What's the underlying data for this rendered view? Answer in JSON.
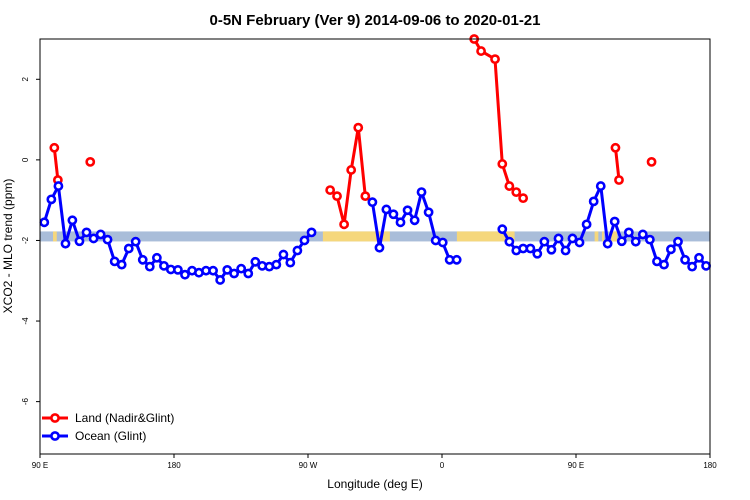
{
  "chart_data": {
    "type": "line",
    "title": "0-5N February (Ver 9)   2014-09-06 to 2020-01-21",
    "xlabel": "Longitude (deg E)",
    "ylabel": "XCO2 - MLO trend (ppm)",
    "xlim": [
      90,
      450
    ],
    "ylim": [
      -7.3,
      3.0
    ],
    "x_ticks": [
      {
        "value": 90,
        "label": "90 E"
      },
      {
        "value": 162,
        "label": "180"
      },
      {
        "value": 234,
        "label": "90 W"
      },
      {
        "value": 306,
        "label": "0"
      },
      {
        "value": 378,
        "label": "90 E"
      },
      {
        "value": 450,
        "label": "180"
      }
    ],
    "y_ticks": [
      {
        "value": 2,
        "label": "2"
      },
      {
        "value": 0,
        "label": "0"
      },
      {
        "value": -2,
        "label": "-2"
      },
      {
        "value": -4,
        "label": "-4"
      },
      {
        "value": -6,
        "label": "-6"
      }
    ],
    "band": {
      "y": -1.9,
      "color_ocean": "#a9bdd9",
      "color_land": "#f5d77c",
      "land_ranges": [
        [
          97,
          99
        ],
        [
          242,
          278
        ],
        [
          314,
          345
        ],
        [
          388,
          390
        ],
        [
          392,
          393
        ],
        [
          397,
          400
        ]
      ]
    },
    "series": [
      {
        "name": "Land (Nadir&Glint)",
        "color": "#ff0000",
        "segments": [
          [
            [
              97.7,
              0.3
            ],
            [
              99.6,
              -0.5
            ]
          ],
          [
            [
              117.0,
              -0.05
            ]
          ],
          [
            [
              245.9,
              -0.75
            ],
            [
              249.6,
              -0.9
            ],
            [
              253.4,
              -1.6
            ],
            [
              257.2,
              -0.25
            ],
            [
              261.0,
              0.8
            ],
            [
              264.8,
              -0.9
            ]
          ],
          [
            [
              323.3,
              3.0
            ],
            [
              327.0,
              2.7
            ],
            [
              334.5,
              2.5
            ],
            [
              338.4,
              -0.1
            ],
            [
              342.2,
              -0.65
            ],
            [
              345.9,
              -0.8
            ],
            [
              349.6,
              -0.95
            ]
          ],
          [
            [
              399.2,
              0.3
            ],
            [
              401.1,
              -0.5
            ]
          ],
          [
            [
              418.6,
              -0.05
            ]
          ]
        ]
      },
      {
        "name": "Ocean (Glint)",
        "color": "#0000ff",
        "segments": [
          [
            [
              92.3,
              -1.55
            ],
            [
              96.1,
              -0.98
            ],
            [
              99.9,
              -0.65
            ],
            [
              103.7,
              -2.08
            ],
            [
              107.4,
              -1.5
            ],
            [
              111.2,
              -2.02
            ],
            [
              115.0,
              -1.8
            ],
            [
              118.8,
              -1.95
            ],
            [
              122.6,
              -1.85
            ],
            [
              126.3,
              -1.98
            ],
            [
              130.1,
              -2.52
            ],
            [
              133.9,
              -2.6
            ],
            [
              137.7,
              -2.2
            ],
            [
              141.4,
              -2.03
            ],
            [
              145.2,
              -2.48
            ],
            [
              149.0,
              -2.65
            ],
            [
              152.8,
              -2.43
            ],
            [
              156.6,
              -2.63
            ],
            [
              160.3,
              -2.72
            ],
            [
              164.1,
              -2.73
            ],
            [
              167.9,
              -2.85
            ],
            [
              171.7,
              -2.75
            ],
            [
              175.4,
              -2.8
            ],
            [
              179.2,
              -2.75
            ],
            [
              183.0,
              -2.75
            ],
            [
              186.8,
              -2.98
            ],
            [
              190.6,
              -2.73
            ],
            [
              194.3,
              -2.82
            ],
            [
              198.1,
              -2.7
            ],
            [
              201.9,
              -2.82
            ],
            [
              205.7,
              -2.53
            ],
            [
              209.4,
              -2.63
            ],
            [
              213.2,
              -2.65
            ],
            [
              217.0,
              -2.6
            ],
            [
              220.8,
              -2.35
            ],
            [
              224.5,
              -2.55
            ],
            [
              228.3,
              -2.25
            ],
            [
              232.1,
              -2.0
            ],
            [
              235.9,
              -1.8
            ]
          ],
          [
            [
              268.6,
              -1.05
            ],
            [
              272.4,
              -2.18
            ],
            [
              276.1,
              -1.23
            ],
            [
              279.9,
              -1.35
            ],
            [
              283.7,
              -1.55
            ],
            [
              287.5,
              -1.25
            ],
            [
              291.3,
              -1.5
            ],
            [
              295.0,
              -0.8
            ],
            [
              298.8,
              -1.3
            ],
            [
              302.6,
              -2.0
            ],
            [
              306.4,
              -2.05
            ],
            [
              310.1,
              -2.48
            ],
            [
              313.9,
              -2.48
            ]
          ],
          [
            [
              338.4,
              -1.72
            ],
            [
              342.2,
              -2.03
            ],
            [
              345.9,
              -2.25
            ],
            [
              349.6,
              -2.2
            ],
            [
              353.5,
              -2.2
            ],
            [
              357.2,
              -2.33
            ],
            [
              361.0,
              -2.03
            ],
            [
              364.8,
              -2.23
            ],
            [
              368.6,
              -1.95
            ],
            [
              372.4,
              -2.25
            ],
            [
              376.1,
              -1.95
            ],
            [
              379.9,
              -2.05
            ],
            [
              383.7,
              -1.6
            ],
            [
              387.5,
              -1.03
            ],
            [
              391.3,
              -0.65
            ],
            [
              395.0,
              -2.08
            ],
            [
              398.8,
              -1.53
            ],
            [
              402.6,
              -2.02
            ],
            [
              406.4,
              -1.8
            ],
            [
              410.1,
              -2.03
            ],
            [
              413.9,
              -1.85
            ],
            [
              417.7,
              -1.98
            ],
            [
              421.5,
              -2.52
            ],
            [
              425.3,
              -2.6
            ],
            [
              429.0,
              -2.22
            ],
            [
              432.8,
              -2.03
            ],
            [
              436.6,
              -2.48
            ],
            [
              440.4,
              -2.65
            ],
            [
              444.1,
              -2.43
            ],
            [
              447.9,
              -2.63
            ]
          ]
        ]
      }
    ],
    "legend": {
      "placement": "bottom-left",
      "entries": [
        "Land (Nadir&Glint)",
        "Ocean (Glint)"
      ]
    },
    "grid": false
  }
}
